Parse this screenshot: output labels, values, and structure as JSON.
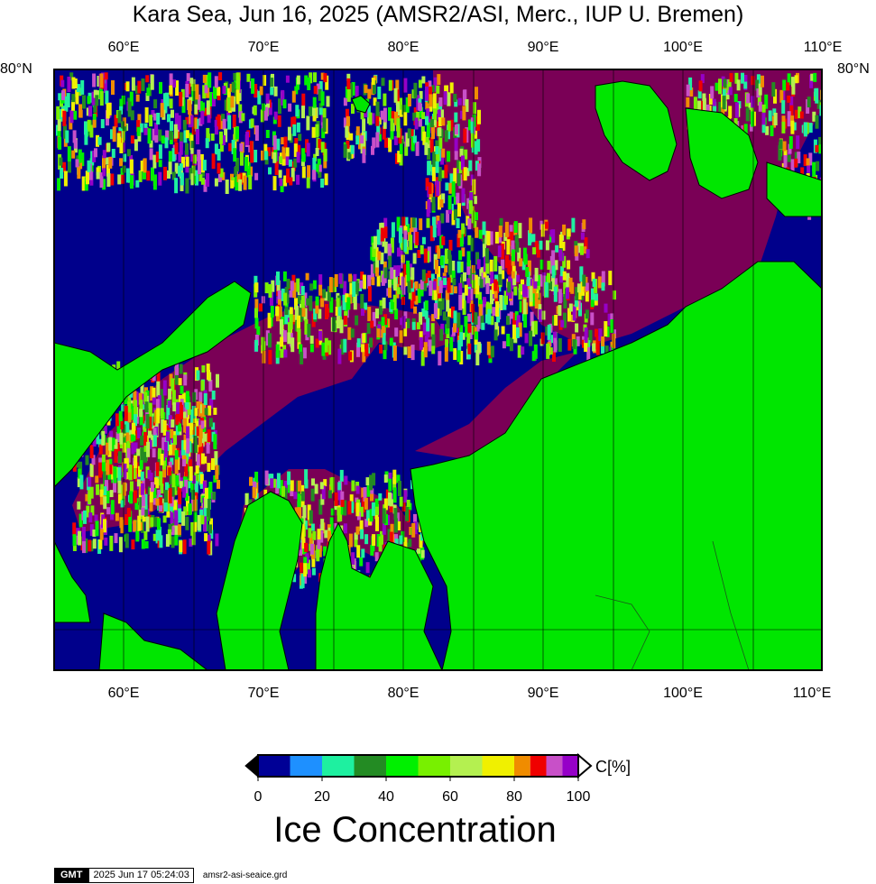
{
  "title": "Kara Sea, Jun 16, 2025 (AMSR2/ASI, Merc., IUP U. Bremen)",
  "axes": {
    "lon_labels": [
      "60°E",
      "70°E",
      "80°E",
      "90°E",
      "100°E",
      "110°E"
    ],
    "lat_label_left": "80°N",
    "lat_label_right": "80°N",
    "lon_range": [
      55,
      110
    ]
  },
  "colors": {
    "land": "#00e600",
    "water": "#00008b",
    "ice_full": "#7a0056",
    "coastline": "#000000"
  },
  "colorbar": {
    "title": "Ice Concentration",
    "unit": "C[%]",
    "ticks": [
      "0",
      "20",
      "40",
      "60",
      "80",
      "100"
    ],
    "bins": [
      {
        "from": 0,
        "to": 10,
        "color": "#000096"
      },
      {
        "from": 10,
        "to": 20,
        "color": "#1e90ff"
      },
      {
        "from": 20,
        "to": 30,
        "color": "#1ef0a0"
      },
      {
        "from": 30,
        "to": 40,
        "color": "#238b23"
      },
      {
        "from": 40,
        "to": 50,
        "color": "#00f000"
      },
      {
        "from": 50,
        "to": 60,
        "color": "#78f000"
      },
      {
        "from": 60,
        "to": 70,
        "color": "#b4f050"
      },
      {
        "from": 70,
        "to": 80,
        "color": "#f0f000"
      },
      {
        "from": 80,
        "to": 85,
        "color": "#f08c00"
      },
      {
        "from": 85,
        "to": 90,
        "color": "#f00000"
      },
      {
        "from": 90,
        "to": 95,
        "color": "#c850c8"
      },
      {
        "from": 95,
        "to": 100,
        "color": "#9600c8"
      }
    ]
  },
  "footer": {
    "logo": "GMT",
    "timestamp": "2025 Jun 17 05:24:03",
    "filename": "amsr2-asi-seaice.grd"
  }
}
